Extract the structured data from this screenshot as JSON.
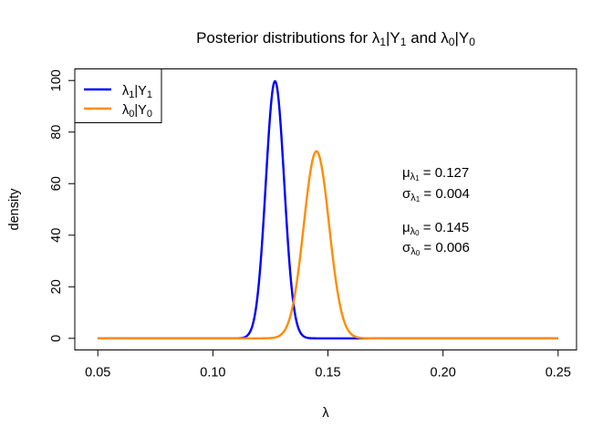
{
  "chart_data": {
    "type": "line",
    "title": {
      "prefix": "Posterior distributions for ",
      "lam": "λ",
      "sub1": "1",
      "bar1": "|Y",
      "sub1b": "1",
      "mid": " and ",
      "lam0": "λ",
      "sub0": "0",
      "bar0": "|Y",
      "sub0b": "0"
    },
    "xlabel": "λ",
    "ylabel": "density",
    "xlim": [
      0.04,
      0.258
    ],
    "ylim": [
      -4.5,
      104.5
    ],
    "xticks": [
      0.05,
      0.1,
      0.15,
      0.2,
      0.25
    ],
    "xtick_labels": [
      "0.05",
      "0.10",
      "0.15",
      "0.20",
      "0.25"
    ],
    "yticks": [
      0,
      20,
      40,
      60,
      80,
      100
    ],
    "ytick_labels": [
      "0",
      "20",
      "40",
      "60",
      "80",
      "100"
    ],
    "x_range": [
      0.05,
      0.25
    ],
    "grid": false,
    "legend_position": "top-left",
    "series": [
      {
        "name_main": "λ",
        "name_sub": "1",
        "name_bar": "|Y",
        "name_sub2": "1",
        "mean": 0.127,
        "sd": 0.004,
        "color": "#0000ff"
      },
      {
        "name_main": "λ",
        "name_sub": "0",
        "name_bar": "|Y",
        "name_sub2": "0",
        "mean": 0.145,
        "sd": 0.0055,
        "color": "#ff8c00"
      }
    ],
    "annotations": [
      {
        "sym": "μ",
        "sub": "λ",
        "subsub": "1",
        "text": " = 0.127"
      },
      {
        "sym": "σ",
        "sub": "λ",
        "subsub": "1",
        "text": " = 0.004"
      },
      {
        "sym": "μ",
        "sub": "λ",
        "subsub": "0",
        "text": " = 0.145"
      },
      {
        "sym": "σ",
        "sub": "λ",
        "subsub": "0",
        "text": " = 0.006"
      }
    ]
  }
}
